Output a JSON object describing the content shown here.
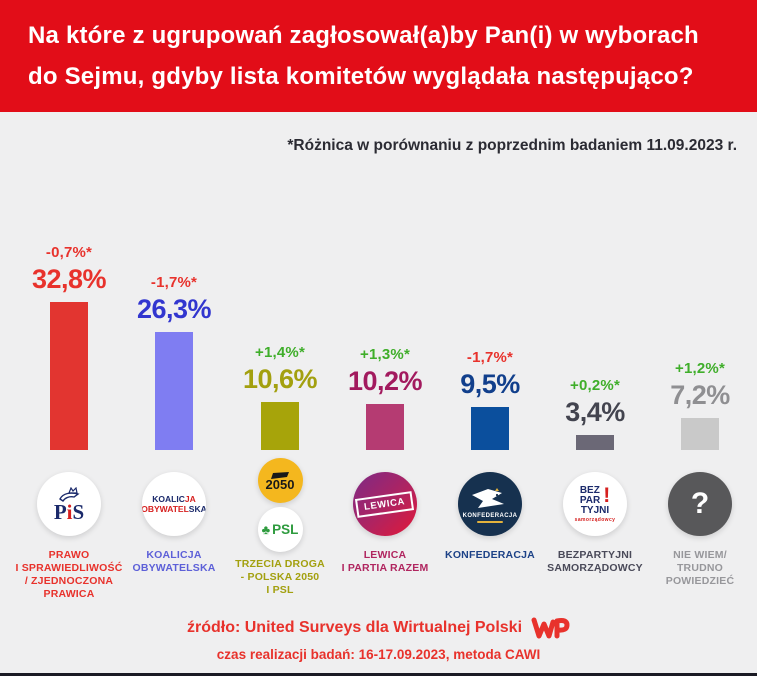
{
  "header": {
    "title_line1": "Na które z ugrupowań zagłosował(a)by Pan(i) w wyborach",
    "title_line2": "do Sejmu, gdyby lista komitetów wyglądała następująco?"
  },
  "subtitle": "*Różnica w porównaniu z poprzednim badaniem 11.09.2023 r.",
  "chart_data": {
    "type": "bar",
    "title": "Na które z ugrupowań zagłosował(a)by Pan(i) w wyborach do Sejmu, gdyby lista komitetów wyglądała następująco?",
    "categories": [
      "Prawo i Sprawiedliwość / Zjednoczona Prawica",
      "Koalicja Obywatelska",
      "Trzecia Droga - Polska 2050 i PSL",
      "Lewica i Partia Razem",
      "Konfederacja",
      "Bezpartyjni Samorządowcy",
      "Nie wiem / Trudno powiedzieć"
    ],
    "values": [
      32.8,
      26.3,
      10.6,
      10.2,
      9.5,
      3.4,
      7.2
    ],
    "diffs_vs_previous_pp": [
      -0.7,
      -1.7,
      1.4,
      1.3,
      -1.7,
      0.2,
      1.2
    ],
    "unit": "%",
    "ylim": [
      0,
      35
    ],
    "grid": false,
    "legend": false,
    "note": "*Różnica w porównaniu z poprzednim badaniem 11.09.2023 r."
  },
  "colors": {
    "header_red": "#e20d18",
    "background": "#efeff0",
    "diff_negative": "#e8322c",
    "diff_positive": "#3fae2a",
    "footer_red": "#e8322c"
  },
  "parties": [
    {
      "name": "Prawo i Sprawiedliwość / Zjednoczona Prawica",
      "label_lines": [
        "PRAWO",
        "I SPRAWIEDLIWOŚĆ",
        "/ ZJEDNOCZONA",
        "PRAWICA"
      ],
      "value": 32.8,
      "value_label": "32,8%",
      "diff": "-0,7%*",
      "bar_color": "#e23530",
      "value_color": "#e8322c",
      "diff_color": "#e8322c",
      "label_color": "#e8322c",
      "logo": {
        "part1": "P",
        "part2": "i",
        "part3": "S"
      }
    },
    {
      "name": "Koalicja Obywatelska",
      "label_lines": [
        "KOALICJA",
        "OBYWATELSKA"
      ],
      "value": 26.3,
      "value_label": "26,3%",
      "diff": "-1,7%*",
      "bar_color": "#7f7df2",
      "value_color": "#3236cf",
      "diff_color": "#e8322c",
      "label_color": "#5d60d8",
      "logo": {
        "l1a": "KOALIC",
        "l1b": "JA",
        "l2a": "OBYWATEL",
        "l2b": "SKA"
      }
    },
    {
      "name": "Trzecia Droga - Polska 2050 i PSL",
      "label_lines": [
        "TRZECIA DROGA",
        "- POLSKA 2050",
        "I PSL"
      ],
      "value": 10.6,
      "value_label": "10,6%",
      "diff": "+1,4%*",
      "bar_color": "#a7a40a",
      "value_color": "#a3a00f",
      "diff_color": "#3fae2a",
      "label_color": "#a3a00f",
      "logo": {
        "c1": "2050",
        "c2": "PSL"
      }
    },
    {
      "name": "Lewica i Partia Razem",
      "label_lines": [
        "LEWICA",
        "I PARTIA RAZEM"
      ],
      "value": 10.2,
      "value_label": "10,2%",
      "diff": "+1,3%*",
      "bar_color": "#b53b72",
      "value_color": "#a21a5e",
      "diff_color": "#3fae2a",
      "label_color": "#b0255f",
      "logo": {
        "text": "LEWICA"
      }
    },
    {
      "name": "Konfederacja",
      "label_lines": [
        "KONFEDERACJA"
      ],
      "value": 9.5,
      "value_label": "9,5%",
      "diff": "-1,7%*",
      "bar_color": "#0b4f9d",
      "value_color": "#113f8c",
      "diff_color": "#e8322c",
      "label_color": "#1d4287",
      "logo": {
        "text": "KONFEDERACJA"
      }
    },
    {
      "name": "Bezpartyjni Samorządowcy",
      "label_lines": [
        "BEZPARTYJNI",
        "SAMORZĄDOWCY"
      ],
      "value": 3.4,
      "value_label": "3,4%",
      "diff": "+0,2%*",
      "bar_color": "#6b6876",
      "value_color": "#43444f",
      "diff_color": "#3fae2a",
      "label_color": "#4a4a59",
      "logo": {
        "l1": "BEZ",
        "l2": "PAR",
        "l3": "TYJNI",
        "mark": "!",
        "sub": "samorządowcy"
      }
    },
    {
      "name": "Nie wiem / Trudno powiedzieć",
      "label_lines": [
        "NIE WIEM/",
        "TRUDNO",
        "POWIEDZIEĆ"
      ],
      "value": 7.2,
      "value_label": "7,2%",
      "diff": "+1,2%*",
      "bar_color": "#c9c9c9",
      "value_color": "#8f8f92",
      "diff_color": "#3fae2a",
      "label_color": "#97979b",
      "logo": {
        "text": "?"
      }
    }
  ],
  "footer": {
    "source": "źródło: United Surveys dla Wirtualnej Polski",
    "details": "czas realizacji badań: 16-17.09.2023, metoda CAWI",
    "brand": "WP"
  }
}
